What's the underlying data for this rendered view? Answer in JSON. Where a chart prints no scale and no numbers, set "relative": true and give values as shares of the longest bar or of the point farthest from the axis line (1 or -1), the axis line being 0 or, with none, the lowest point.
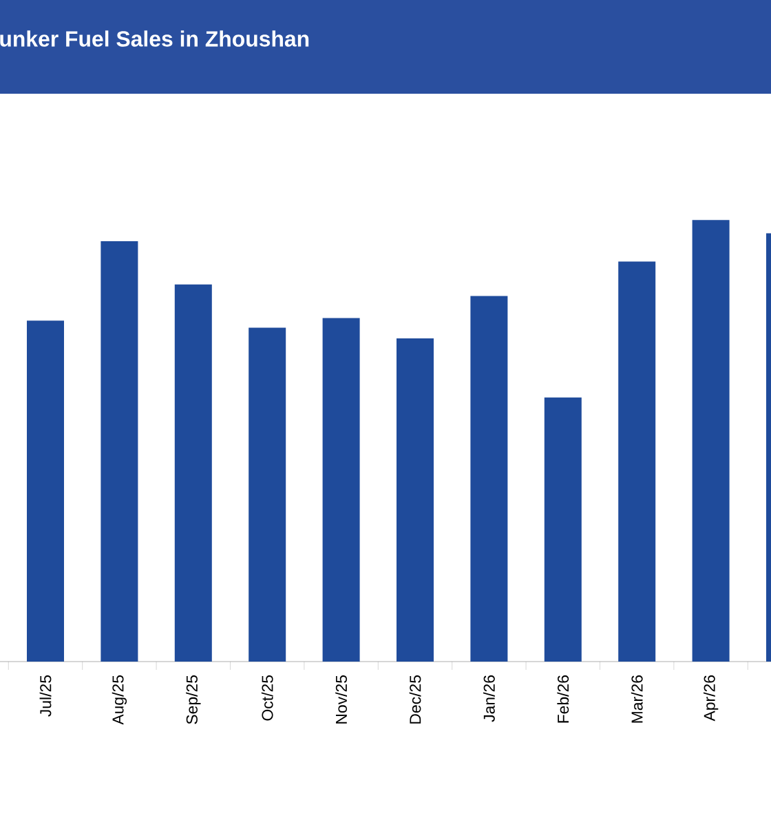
{
  "chart_data": {
    "type": "bar",
    "title": "unker Fuel Sales in Zhoushan",
    "categories": [
      "Jul/25",
      "Aug/25",
      "Sep/25",
      "Oct/25",
      "Nov/25",
      "Dec/25",
      "Jan/26",
      "Feb/26",
      "Mar/26",
      "Apr/26",
      null
    ],
    "values": [
      0.772,
      0.952,
      0.854,
      0.756,
      0.778,
      0.732,
      0.828,
      0.598,
      0.906,
      1,
      0.97
    ],
    "color": "#1f4b9b",
    "relative": true
  }
}
